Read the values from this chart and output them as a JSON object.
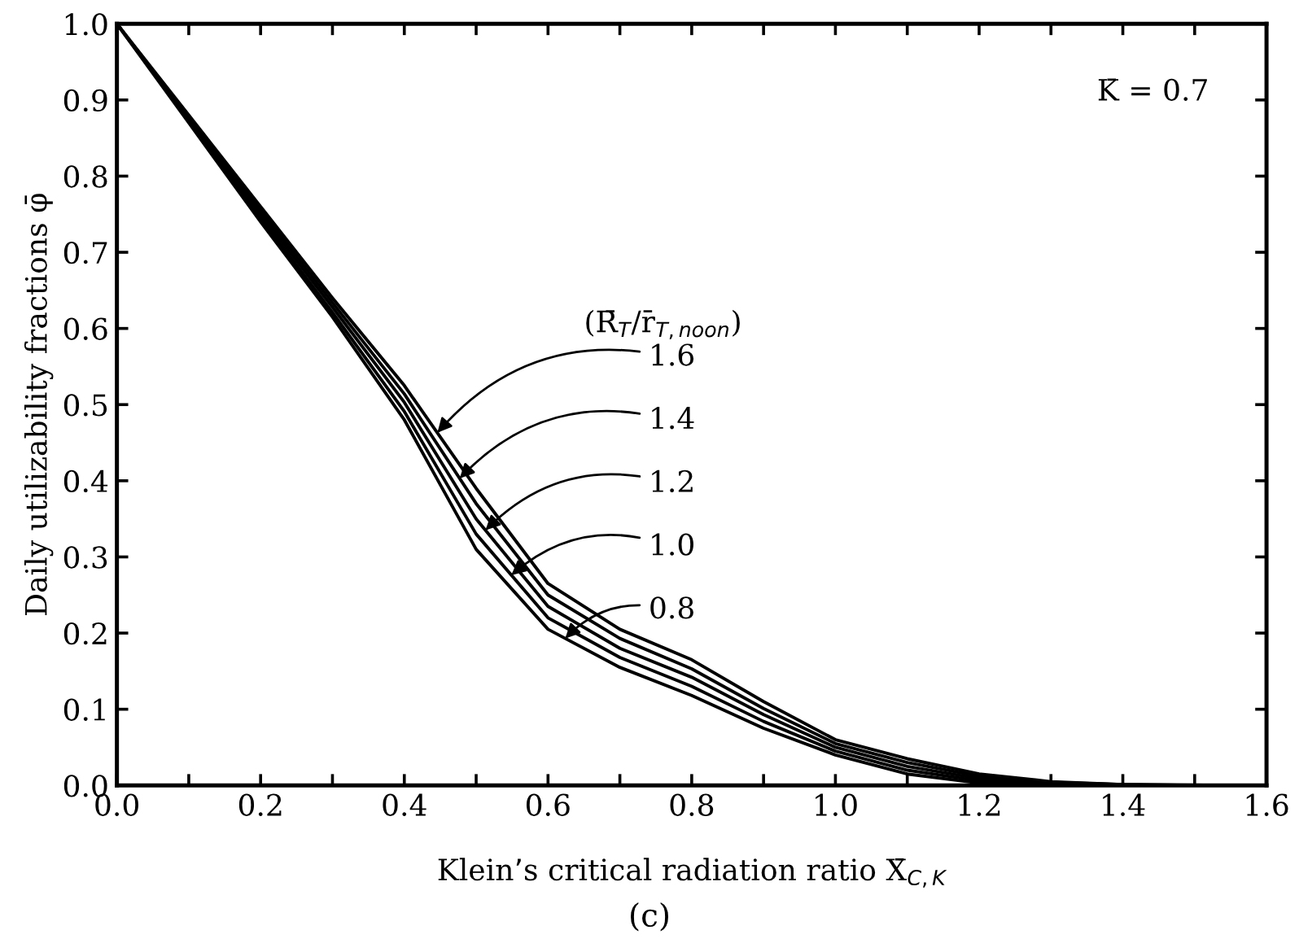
{
  "chart_data": {
    "type": "line",
    "xlabel": "Klein’s critical radiation ratio X̄$_{C,K}$",
    "ylabel": "Daily utilizability fractions φ̄",
    "series": [
      {
        "color": "#000000",
        "x": [
          0,
          0.1,
          0.2,
          0.3,
          0.4,
          0.5,
          0.6,
          0.7,
          0.8,
          0.9,
          1.0,
          1.1,
          1.2,
          1.3
        ],
        "values": [
          1,
          0.87,
          0.74,
          0.615,
          0.48,
          0.31,
          0.205,
          0.155,
          0.118,
          0.075,
          0.04,
          0.015,
          0.003,
          0
        ]
      },
      {
        "color": "#000000",
        "x": [
          0,
          0.1,
          0.2,
          0.3,
          0.4,
          0.5,
          0.6,
          0.7,
          0.8,
          0.9,
          1.0,
          1.1,
          1.2,
          1.3,
          1.4
        ],
        "values": [
          1,
          0.873,
          0.745,
          0.621,
          0.491,
          0.33,
          0.22,
          0.168,
          0.13,
          0.084,
          0.045,
          0.02,
          0.006,
          0.001,
          0
        ]
      },
      {
        "color": "#000000",
        "x": [
          0,
          0.1,
          0.2,
          0.3,
          0.4,
          0.5,
          0.6,
          0.7,
          0.8,
          0.9,
          1.0,
          1.1,
          1.2,
          1.3,
          1.45
        ],
        "values": [
          1,
          0.875,
          0.75,
          0.628,
          0.503,
          0.35,
          0.235,
          0.18,
          0.142,
          0.093,
          0.05,
          0.025,
          0.009,
          0.003,
          0
        ]
      },
      {
        "color": "#000000",
        "x": [
          0,
          0.1,
          0.2,
          0.3,
          0.4,
          0.5,
          0.6,
          0.7,
          0.8,
          0.9,
          1.0,
          1.1,
          1.2,
          1.3,
          1.4,
          1.5
        ],
        "values": [
          1,
          0.878,
          0.755,
          0.634,
          0.514,
          0.37,
          0.25,
          0.193,
          0.153,
          0.101,
          0.055,
          0.03,
          0.012,
          0.004,
          0.001,
          0
        ]
      },
      {
        "color": "#000000",
        "x": [
          0,
          0.1,
          0.2,
          0.3,
          0.4,
          0.5,
          0.6,
          0.7,
          0.8,
          0.9,
          1.0,
          1.1,
          1.2,
          1.3,
          1.4,
          1.55
        ],
        "values": [
          1,
          0.88,
          0.76,
          0.64,
          0.525,
          0.39,
          0.265,
          0.205,
          0.165,
          0.11,
          0.06,
          0.035,
          0.015,
          0.005,
          0.001,
          0
        ]
      }
    ],
    "annotations": [
      "K̄ = 0.7",
      "(R̄$_{T}$/r̄$_{T,noon}$)",
      {
        "text": "1.6",
        "x": 0.446,
        "y": 0.463
      },
      {
        "text": "1.4",
        "x": 0.477,
        "y": 0.403
      },
      {
        "text": "1.2",
        "x": 0.513,
        "y": 0.335
      },
      {
        "text": "1.0",
        "x": 0.549,
        "y": 0.276
      },
      {
        "text": "0.8",
        "x": 0.624,
        "y": 0.193
      },
      "(c)"
    ],
    "xlim": [
      0,
      1.6
    ],
    "xticks": [
      {
        "value": 0,
        "label": "0.0"
      },
      {
        "value": 0.1,
        "label": null
      },
      0.2,
      {
        "value": 0.3,
        "label": null
      },
      0.4,
      {
        "value": 0.5,
        "label": null
      },
      0.6,
      {
        "value": 0.7,
        "label": null
      },
      0.8,
      {
        "value": 0.9,
        "label": null
      },
      {
        "value": 1.0,
        "label": "1.0"
      },
      {
        "value": 1.1,
        "label": null
      },
      1.2,
      {
        "value": 1.3,
        "label": null
      },
      1.4,
      {
        "value": 1.5,
        "label": null
      },
      1.6
    ],
    "ylim": [
      0,
      1.0
    ],
    "yticks": [
      {
        "value": 0,
        "label": "0.0"
      },
      0.1,
      0.2,
      0.3,
      0.4,
      0.5,
      0.6,
      0.7,
      0.8,
      0.9,
      {
        "value": 1.0,
        "label": "1.0"
      }
    ],
    "grid": false,
    "legend": false,
    "marker": "none",
    "line_style": "solid"
  }
}
